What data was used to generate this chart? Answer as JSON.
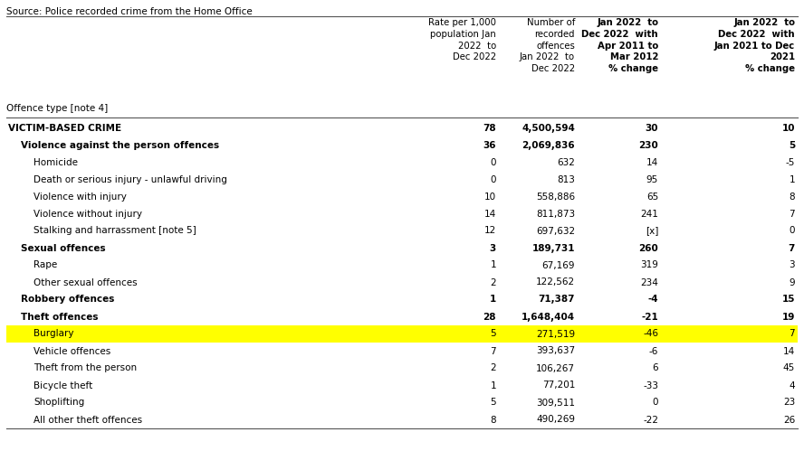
{
  "source_text": "Source: Police recorded crime from the Home Office",
  "col_headers": [
    "Offence type [note 4]",
    "Rate per 1,000\npopulation Jan\n2022  to\nDec 2022",
    "Number of\nrecorded\noffences\nJan 2022  to\nDec 2022",
    "Jan 2022  to\nDec 2022  with\nApr 2011 to\nMar 2012\n% change",
    "Jan 2022  to\nDec 2022  with\nJan 2021 to Dec\n2021\n% change"
  ],
  "rows": [
    {
      "label": "VICTIM-BASED CRIME",
      "indent": 0,
      "bold": true,
      "highlight": false,
      "rate": "78",
      "number": "4,500,594",
      "pct1": "30",
      "pct2": "10"
    },
    {
      "label": "Violence against the person offences",
      "indent": 1,
      "bold": true,
      "highlight": false,
      "rate": "36",
      "number": "2,069,836",
      "pct1": "230",
      "pct2": "5"
    },
    {
      "label": "Homicide",
      "indent": 2,
      "bold": false,
      "highlight": false,
      "rate": "0",
      "number": "632",
      "pct1": "14",
      "pct2": "-5"
    },
    {
      "label": "Death or serious injury - unlawful driving",
      "indent": 2,
      "bold": false,
      "highlight": false,
      "rate": "0",
      "number": "813",
      "pct1": "95",
      "pct2": "1"
    },
    {
      "label": "Violence with injury",
      "indent": 2,
      "bold": false,
      "highlight": false,
      "rate": "10",
      "number": "558,886",
      "pct1": "65",
      "pct2": "8"
    },
    {
      "label": "Violence without injury",
      "indent": 2,
      "bold": false,
      "highlight": false,
      "rate": "14",
      "number": "811,873",
      "pct1": "241",
      "pct2": "7"
    },
    {
      "label": "Stalking and harrassment [note 5]",
      "indent": 2,
      "bold": false,
      "highlight": false,
      "rate": "12",
      "number": "697,632",
      "pct1": "[x]",
      "pct2": "0"
    },
    {
      "label": "Sexual offences",
      "indent": 1,
      "bold": true,
      "highlight": false,
      "rate": "3",
      "number": "189,731",
      "pct1": "260",
      "pct2": "7"
    },
    {
      "label": "Rape",
      "indent": 2,
      "bold": false,
      "highlight": false,
      "rate": "1",
      "number": "67,169",
      "pct1": "319",
      "pct2": "3"
    },
    {
      "label": "Other sexual offences",
      "indent": 2,
      "bold": false,
      "highlight": false,
      "rate": "2",
      "number": "122,562",
      "pct1": "234",
      "pct2": "9"
    },
    {
      "label": "Robbery offences",
      "indent": 1,
      "bold": true,
      "highlight": false,
      "rate": "1",
      "number": "71,387",
      "pct1": "-4",
      "pct2": "15"
    },
    {
      "label": "Theft offences",
      "indent": 1,
      "bold": true,
      "highlight": false,
      "rate": "28",
      "number": "1,648,404",
      "pct1": "-21",
      "pct2": "19"
    },
    {
      "label": "Burglary",
      "indent": 2,
      "bold": false,
      "highlight": true,
      "rate": "5",
      "number": "271,519",
      "pct1": "-46",
      "pct2": "7"
    },
    {
      "label": "Vehicle offences",
      "indent": 2,
      "bold": false,
      "highlight": false,
      "rate": "7",
      "number": "393,637",
      "pct1": "-6",
      "pct2": "14"
    },
    {
      "label": "Theft from the person",
      "indent": 2,
      "bold": false,
      "highlight": false,
      "rate": "2",
      "number": "106,267",
      "pct1": "6",
      "pct2": "45"
    },
    {
      "label": "Bicycle theft",
      "indent": 2,
      "bold": false,
      "highlight": false,
      "rate": "1",
      "number": "77,201",
      "pct1": "-33",
      "pct2": "4"
    },
    {
      "label": "Shoplifting",
      "indent": 2,
      "bold": false,
      "highlight": false,
      "rate": "5",
      "number": "309,511",
      "pct1": "0",
      "pct2": "23"
    },
    {
      "label": "All other theft offences",
      "indent": 2,
      "bold": false,
      "highlight": false,
      "rate": "8",
      "number": "490,269",
      "pct1": "-22",
      "pct2": "26"
    }
  ],
  "highlight_color": "#FFFF00",
  "header_bold_cols": [
    3,
    4
  ],
  "bg_color": "#FFFFFF",
  "text_color": "#000000",
  "line_color": "#555555",
  "fig_w": 8.88,
  "fig_h": 4.99,
  "dpi": 100
}
